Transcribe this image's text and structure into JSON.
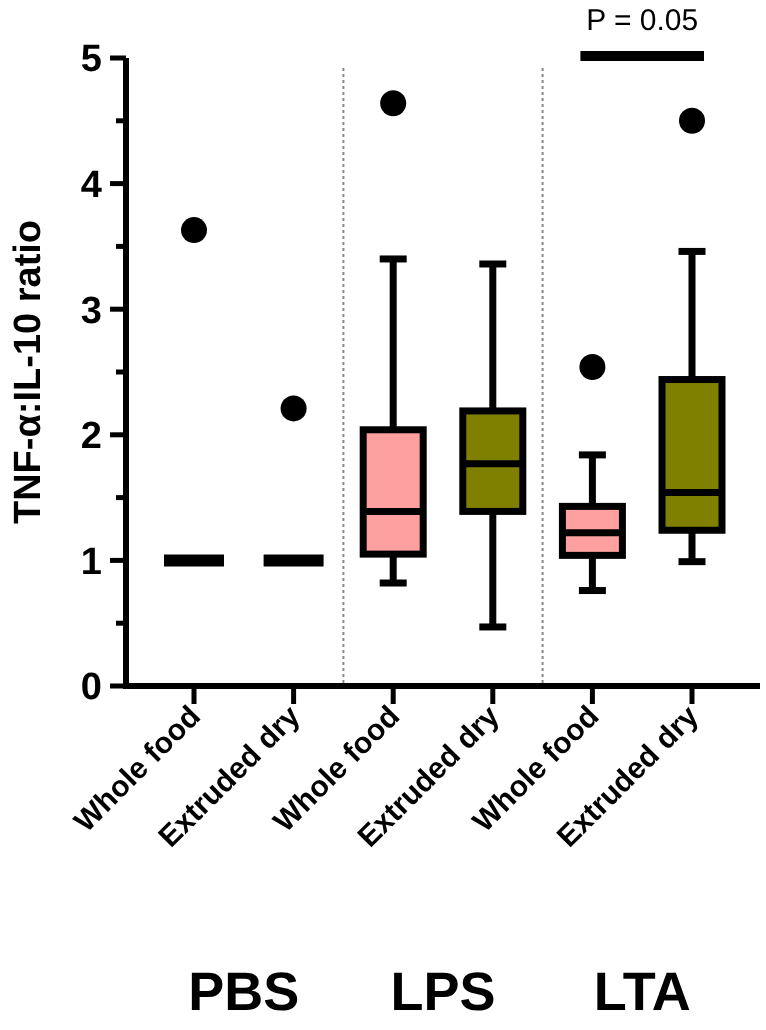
{
  "chart_data": {
    "type": "box",
    "ylabel": "TNF-α:IL-10 ratio",
    "categories": [
      "Whole food",
      "Extruded dry",
      "Whole food",
      "Extruded dry",
      "Whole food",
      "Extruded dry"
    ],
    "colors": [
      "#000000",
      "#000000",
      "#ffa0a0",
      "#808000",
      "#ffa0a0",
      "#808000"
    ],
    "boxes": [
      {
        "low": 1,
        "q1": 1,
        "median": 1,
        "q3": 1,
        "high": 1,
        "outliers": [
          3.63
        ]
      },
      {
        "low": 1,
        "q1": 1,
        "median": 1,
        "q3": 1,
        "high": 1,
        "outliers": [
          2.21
        ]
      },
      {
        "low": 0.82,
        "q1": 1.05,
        "median": 1.39,
        "q3": 2.04,
        "high": 3.4,
        "outliers": [
          4.64
        ]
      },
      {
        "low": 0.47,
        "q1": 1.39,
        "median": 1.77,
        "q3": 2.19,
        "high": 3.36
      },
      {
        "low": 0.76,
        "q1": 1.04,
        "median": 1.22,
        "q3": 1.43,
        "high": 1.84,
        "outliers": [
          2.54
        ]
      },
      {
        "low": 0.99,
        "q1": 1.24,
        "median": 1.54,
        "q3": 2.44,
        "high": 3.46,
        "outliers": [
          4.5
        ]
      }
    ],
    "ylim": [
      0,
      5
    ],
    "yticks": [
      0,
      {
        "value": 0.5,
        "label": null
      },
      1,
      {
        "value": 1.5,
        "label": null
      },
      2,
      {
        "value": 2.5,
        "label": null
      },
      3,
      {
        "value": 3.5,
        "label": null
      },
      4,
      {
        "value": 4.5,
        "label": null
      },
      5
    ],
    "annotations": [
      "P = 0.05",
      "PBS",
      "LPS",
      "LTA"
    ],
    "grid": false
  }
}
